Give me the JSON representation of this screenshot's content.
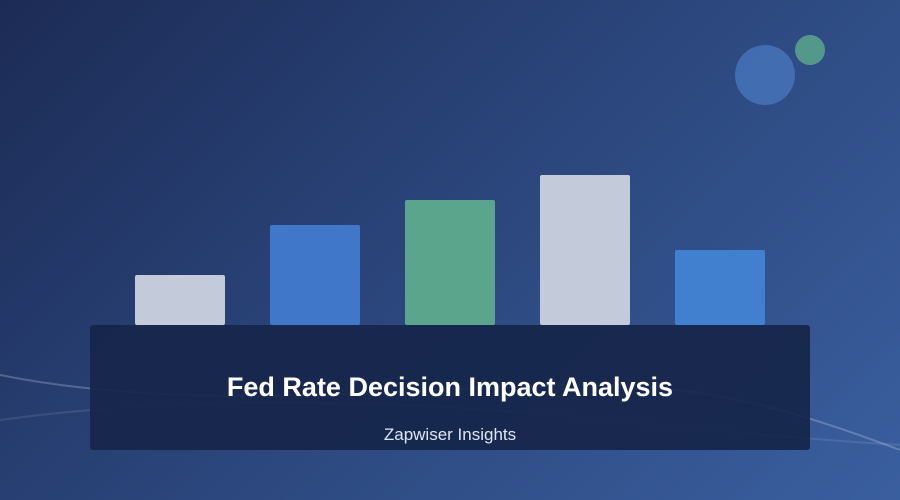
{
  "title": "Fed Rate Decision Impact Analysis",
  "subtitle": "Zapwiser Insights",
  "colors": {
    "background_start": "#1c2b55",
    "background_end": "#3a5f9f",
    "panel": "#16254a",
    "accent_blue": "#4180cf",
    "accent_green": "#5ba58c",
    "accent_light": "#c3cbdb"
  },
  "decorations": {
    "circles": [
      {
        "name": "circle-large",
        "color": "#4a78c0"
      },
      {
        "name": "circle-small",
        "color": "#5ba58c"
      }
    ]
  },
  "chart_data": {
    "type": "bar",
    "categories": [
      "",
      "",
      "",
      "",
      ""
    ],
    "values": [
      50,
      100,
      125,
      150,
      75
    ],
    "colors": [
      "#c3cbdb",
      "#4077c8",
      "#5ba58c",
      "#c3cbdb",
      "#4180cf"
    ],
    "title": "",
    "xlabel": "",
    "ylabel": "",
    "grid": false
  }
}
